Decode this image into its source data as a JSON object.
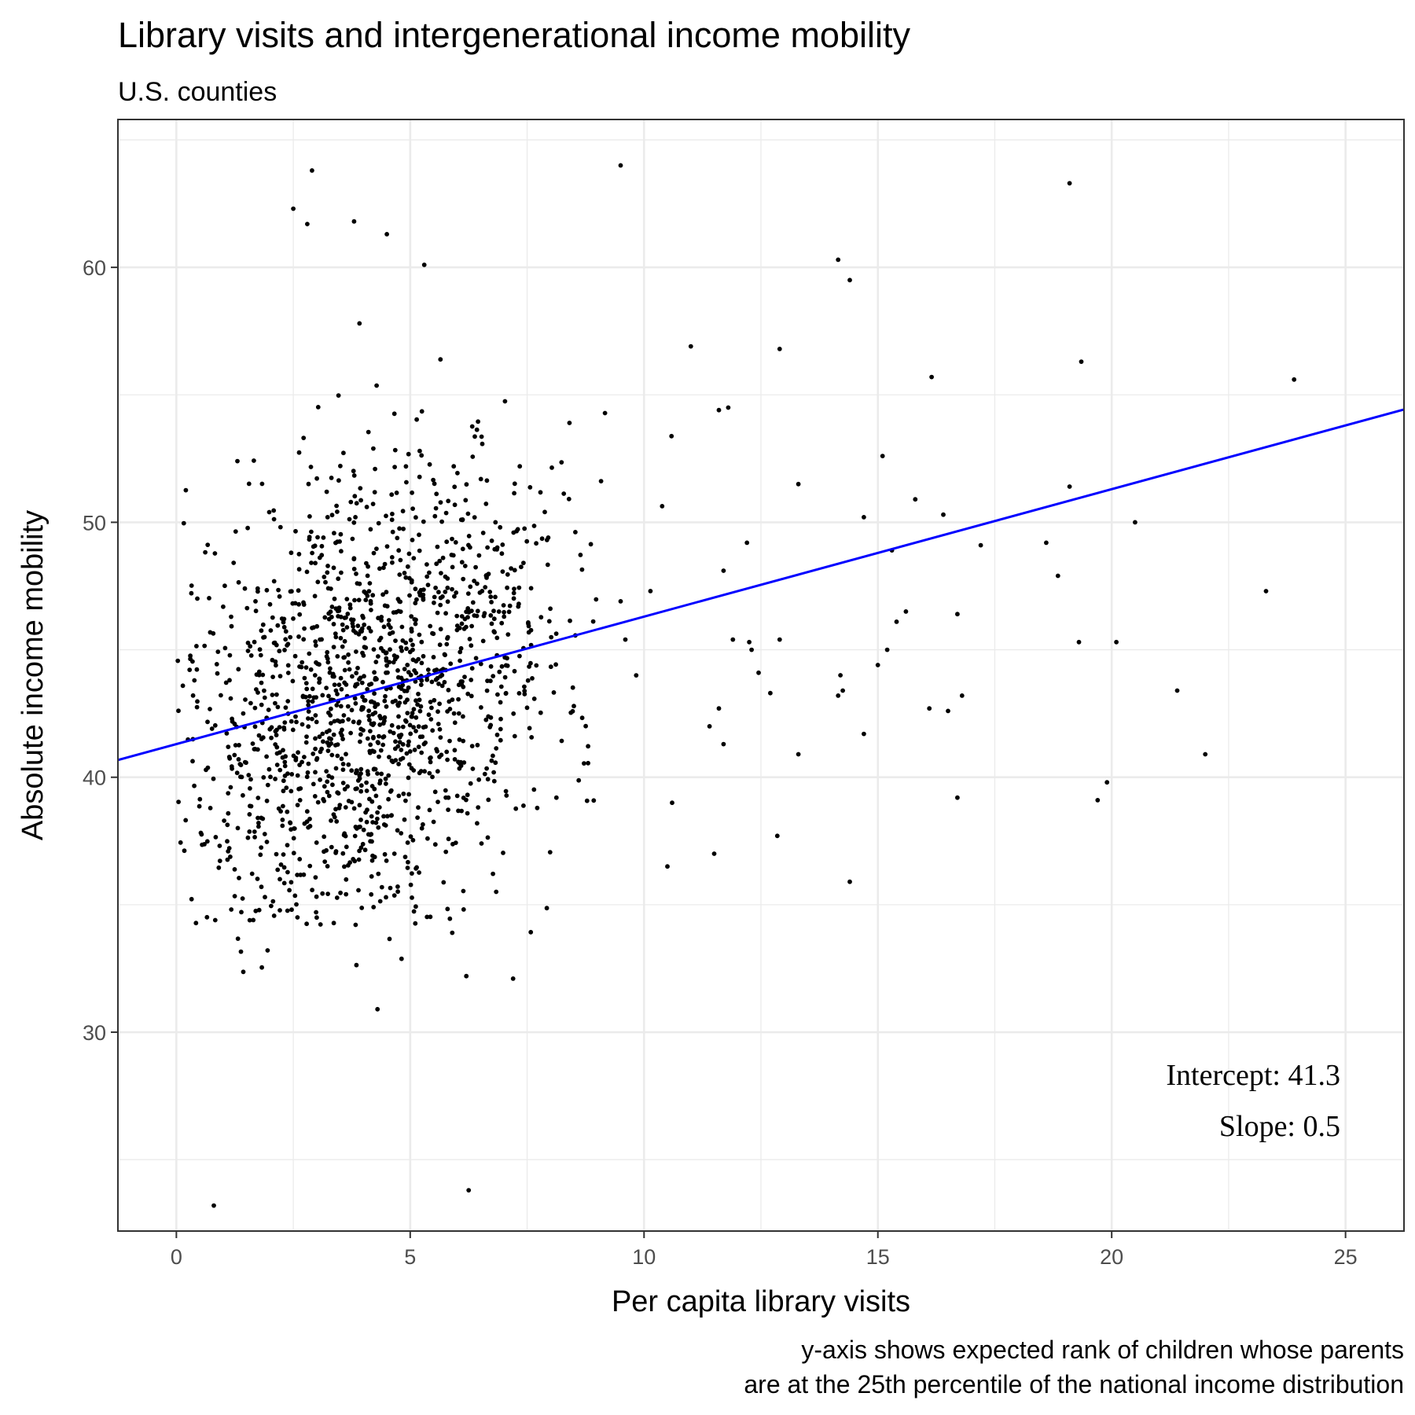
{
  "chart_data": {
    "type": "scatter",
    "title": "Library visits and intergenerational income mobility",
    "subtitle": "U.S. counties",
    "xlabel": "Per capita library visits",
    "ylabel": "Absolute income mobility",
    "caption_lines": [
      "y-axis shows expected rank of children whose parents",
      "are at the 25th percentile of the national income distribution"
    ],
    "xlim": [
      -1.25,
      26.25
    ],
    "ylim": [
      22.2,
      65.8
    ],
    "x_ticks": [
      0,
      5,
      10,
      15,
      20,
      25
    ],
    "x_tick_labels": [
      "0",
      "5",
      "10",
      "15",
      "20",
      "25"
    ],
    "y_ticks": [
      30,
      40,
      50,
      60
    ],
    "y_tick_labels": [
      "30",
      "40",
      "50",
      "60"
    ],
    "grid": true,
    "colors": {
      "points": "#000000",
      "line": "#0000ff",
      "grid": "#ebebeb",
      "panel_border": "#333333"
    },
    "regression": {
      "intercept": 41.3,
      "slope": 0.5
    },
    "annotations": [
      "Intercept: 41.3",
      "Slope: 0.5"
    ],
    "outliers": [
      [
        0.8,
        23.2
      ],
      [
        6.25,
        23.8
      ],
      [
        4.3,
        30.9
      ],
      [
        6.2,
        32.2
      ],
      [
        7.2,
        32.1
      ],
      [
        2.9,
        63.8
      ],
      [
        9.5,
        64.0
      ],
      [
        19.1,
        63.3
      ],
      [
        2.5,
        62.3
      ],
      [
        2.8,
        61.7
      ],
      [
        3.8,
        61.8
      ],
      [
        4.5,
        61.3
      ],
      [
        14.15,
        60.3
      ],
      [
        14.4,
        59.5
      ],
      [
        5.3,
        60.1
      ],
      [
        23.9,
        55.6
      ],
      [
        22.0,
        40.9
      ],
      [
        21.4,
        43.4
      ],
      [
        23.3,
        47.3
      ],
      [
        20.5,
        50.0
      ],
      [
        20.1,
        45.3
      ],
      [
        19.3,
        45.3
      ],
      [
        19.9,
        39.8
      ],
      [
        19.7,
        39.1
      ],
      [
        19.1,
        51.4
      ],
      [
        18.85,
        47.9
      ],
      [
        18.6,
        49.2
      ],
      [
        19.35,
        56.3
      ],
      [
        16.15,
        55.7
      ],
      [
        16.4,
        50.3
      ],
      [
        17.2,
        49.1
      ],
      [
        16.7,
        46.4
      ],
      [
        16.5,
        42.6
      ],
      [
        16.8,
        43.2
      ],
      [
        16.7,
        39.2
      ],
      [
        16.1,
        42.7
      ],
      [
        15.8,
        50.9
      ],
      [
        15.6,
        46.5
      ],
      [
        15.4,
        46.1
      ],
      [
        15.3,
        48.9
      ],
      [
        15.1,
        52.6
      ],
      [
        15.0,
        44.4
      ],
      [
        15.2,
        45.0
      ],
      [
        14.7,
        50.2
      ],
      [
        14.7,
        41.7
      ],
      [
        14.25,
        43.4
      ],
      [
        14.15,
        43.2
      ],
      [
        14.2,
        44.0
      ],
      [
        14.4,
        35.9
      ],
      [
        13.3,
        51.5
      ],
      [
        13.3,
        40.9
      ],
      [
        12.9,
        45.4
      ],
      [
        12.85,
        37.7
      ],
      [
        12.9,
        56.8
      ],
      [
        12.7,
        43.3
      ],
      [
        12.45,
        44.1
      ],
      [
        12.25,
        45.3
      ],
      [
        12.3,
        45.0
      ],
      [
        12.2,
        49.2
      ],
      [
        11.8,
        54.5
      ],
      [
        11.6,
        54.4
      ],
      [
        11.6,
        42.7
      ],
      [
        11.7,
        41.3
      ],
      [
        11.4,
        42.0
      ],
      [
        11.5,
        37.0
      ],
      [
        11.7,
        48.1
      ],
      [
        11.9,
        45.4
      ],
      [
        11.0,
        56.9
      ],
      [
        10.5,
        36.5
      ],
      [
        10.6,
        39.0
      ],
      [
        9.5,
        46.9
      ],
      [
        9.6,
        45.4
      ]
    ],
    "cluster": {
      "count": 1500,
      "x_center": 4.2,
      "x_spread": 2.2,
      "x_range": [
        0.0,
        11.2
      ],
      "y_center": 43.2,
      "y_spread": 4.7,
      "y_range": [
        32.3,
        60.0
      ],
      "x_skew_to_high_y": 0.12
    }
  }
}
